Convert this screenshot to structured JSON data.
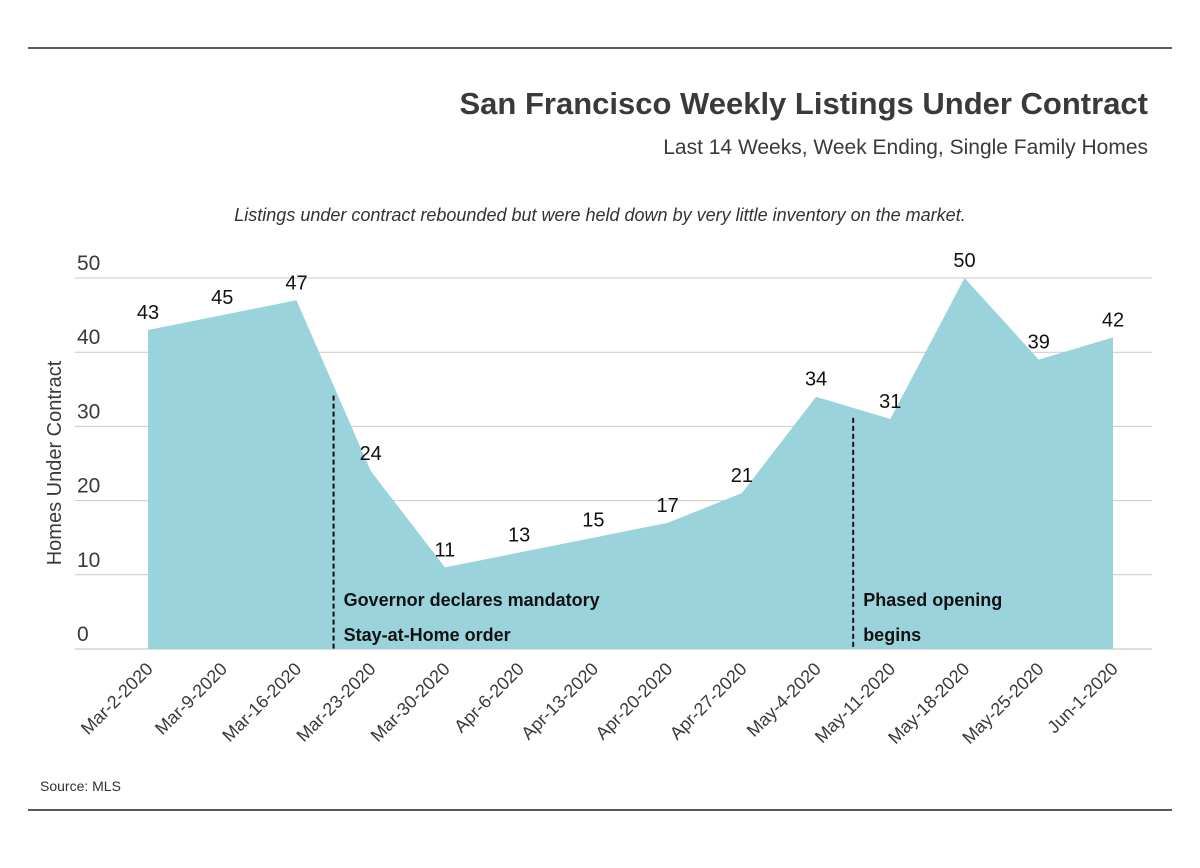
{
  "chart_data": {
    "type": "area",
    "title": "San Francisco Weekly Listings Under Contract",
    "subtitle": "Last 14 Weeks, Week Ending, Single Family Homes",
    "caption": "Listings under contract rebounded but were held down by very little inventory on the market.",
    "ylabel": "Homes Under Contract",
    "xlabel": "",
    "ylim": [
      0,
      50
    ],
    "yticks": [
      0,
      10,
      20,
      30,
      40,
      50
    ],
    "grid": true,
    "categories": [
      "Mar-2-2020",
      "Mar-9-2020",
      "Mar-16-2020",
      "Mar-23-2020",
      "Mar-30-2020",
      "Apr-6-2020",
      "Apr-13-2020",
      "Apr-20-2020",
      "Apr-27-2020",
      "May-4-2020",
      "May-11-2020",
      "May-18-2020",
      "May-25-2020",
      "Jun-1-2020"
    ],
    "values": [
      43,
      45,
      47,
      24,
      11,
      13,
      15,
      17,
      21,
      34,
      31,
      50,
      39,
      42
    ],
    "annotations": [
      {
        "lines": [
          "Governor declares mandatory",
          "Stay-at-Home order"
        ],
        "between": [
          "Mar-16-2020",
          "Mar-23-2020"
        ]
      },
      {
        "lines": [
          "Phased opening",
          "begins"
        ],
        "between": [
          "May-4-2020",
          "May-11-2020"
        ]
      }
    ],
    "source": "Source: MLS",
    "colors": {
      "area": "#9ad3db",
      "grid": "#c9c9c9",
      "text": "#333333",
      "rule": "#222222"
    }
  }
}
